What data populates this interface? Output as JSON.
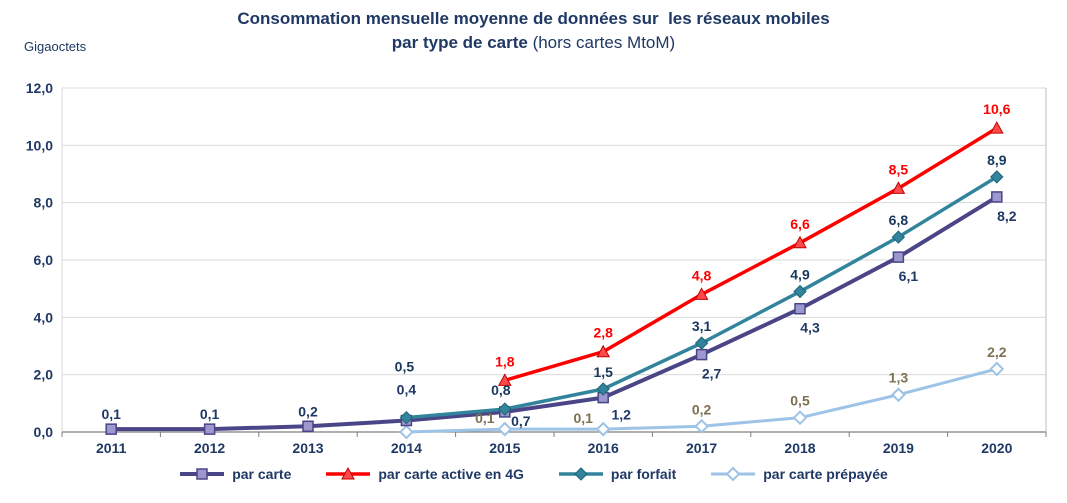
{
  "title": {
    "line1": "Consommation mensuelle moyenne de données sur  les réseaux mobiles",
    "line2_bold": "par type de carte",
    "line2_rest": " (hors cartes MtoM)"
  },
  "unit_label": "Gigaoctets",
  "chart_data": {
    "type": "line",
    "title": "Consommation mensuelle moyenne de données sur les réseaux mobiles par type de carte (hors cartes MtoM)",
    "ylabel": "Gigaoctets",
    "xlabel": "",
    "categories": [
      "2011",
      "2012",
      "2013",
      "2014",
      "2015",
      "2016",
      "2017",
      "2018",
      "2019",
      "2020"
    ],
    "ylim": [
      0,
      12
    ],
    "y_tick_step": 2,
    "y_tick_labels": [
      "0,0",
      "2,0",
      "4,0",
      "6,0",
      "8,0",
      "10,0",
      "12,0"
    ],
    "grid": true,
    "legend_position": "bottom",
    "series": [
      {
        "name": "par carte",
        "color": "#4A4587",
        "marker": "square",
        "marker_fill": "#9C98CE",
        "label_color": "#1F3864",
        "values": [
          0.1,
          0.1,
          0.2,
          0.4,
          0.7,
          1.2,
          2.7,
          4.3,
          6.1,
          8.2
        ],
        "labels": [
          "0,1",
          "0,1",
          "0,2",
          "0,4",
          "0,7",
          "1,2",
          "2,7",
          "4,3",
          "6,1",
          "8,2"
        ]
      },
      {
        "name": "par carte active en 4G",
        "color": "#FF0000",
        "marker": "triangle",
        "marker_fill": "#FF4A4A",
        "label_color": "#FF0000",
        "values": [
          null,
          null,
          null,
          null,
          1.8,
          2.8,
          4.8,
          6.6,
          8.5,
          10.6
        ],
        "labels": [
          null,
          null,
          null,
          null,
          "1,8",
          "2,8",
          "4,8",
          "6,6",
          "8,5",
          "10,6"
        ]
      },
      {
        "name": "par forfait",
        "color": "#31849B",
        "marker": "diamond",
        "marker_fill": "#31849B",
        "label_color": "#17375D",
        "values": [
          null,
          null,
          null,
          0.5,
          0.8,
          1.5,
          3.1,
          4.9,
          6.8,
          8.9
        ],
        "labels": [
          null,
          null,
          null,
          "0,5",
          "0,8",
          "1,5",
          "3,1",
          "4,9",
          "6,8",
          "8,9"
        ]
      },
      {
        "name": "par carte prépayée",
        "color": "#9DC3E6",
        "marker": "diamond-open",
        "marker_fill": "#FFFFFF",
        "label_color": "#7E7052",
        "values": [
          null,
          null,
          null,
          0.0,
          0.1,
          0.1,
          0.2,
          0.5,
          1.3,
          2.2
        ],
        "labels": [
          null,
          null,
          null,
          null,
          "0,1",
          "0,1",
          "0,2",
          "0,5",
          "1,3",
          "2,2"
        ]
      }
    ]
  }
}
